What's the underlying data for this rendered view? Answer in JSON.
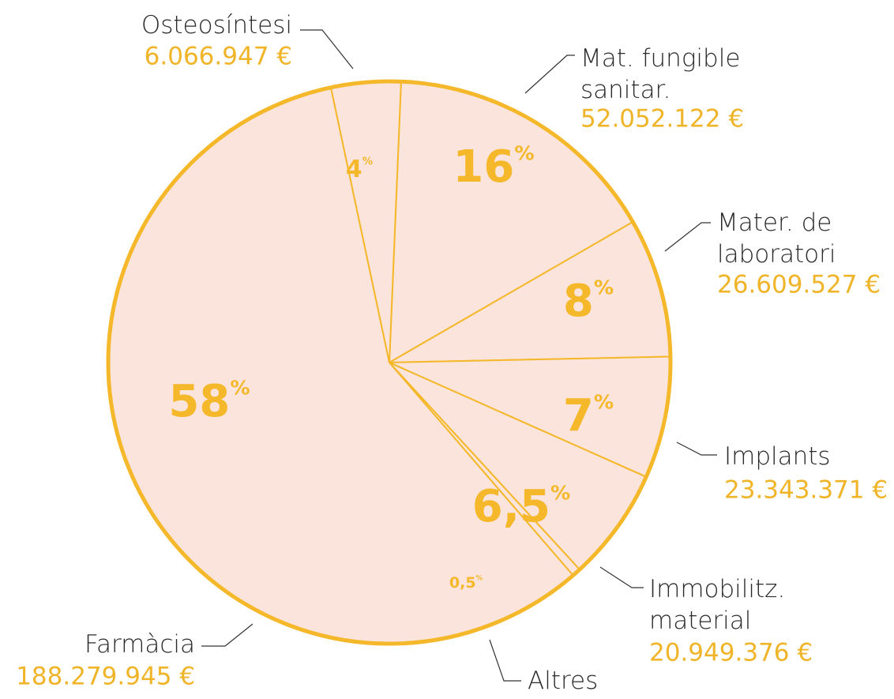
{
  "chart_data": {
    "type": "pie",
    "categories": [
      "Mat. fungible\nsanitar.",
      "Mater. de\nlaboratori",
      "Implants",
      "Immobilitz.\nmaterial",
      "Altres",
      "Farmàcia",
      "Osteosíntesi"
    ],
    "values": [
      16,
      8,
      7,
      6.5,
      0.5,
      58,
      4
    ],
    "value_labels": [
      "16%",
      "8%",
      "7%",
      "6,5%",
      "0,5%",
      "58%",
      "4%"
    ],
    "amounts": [
      "52.052.122 €",
      "26.609.527 €",
      "23.343.371 €",
      "20.949.376 €",
      null,
      "188.279.945 €",
      "6.066.947 €"
    ],
    "color": "#fbe4dc",
    "edge_color": "#f5b82a",
    "amount_color": "#f0b429"
  }
}
